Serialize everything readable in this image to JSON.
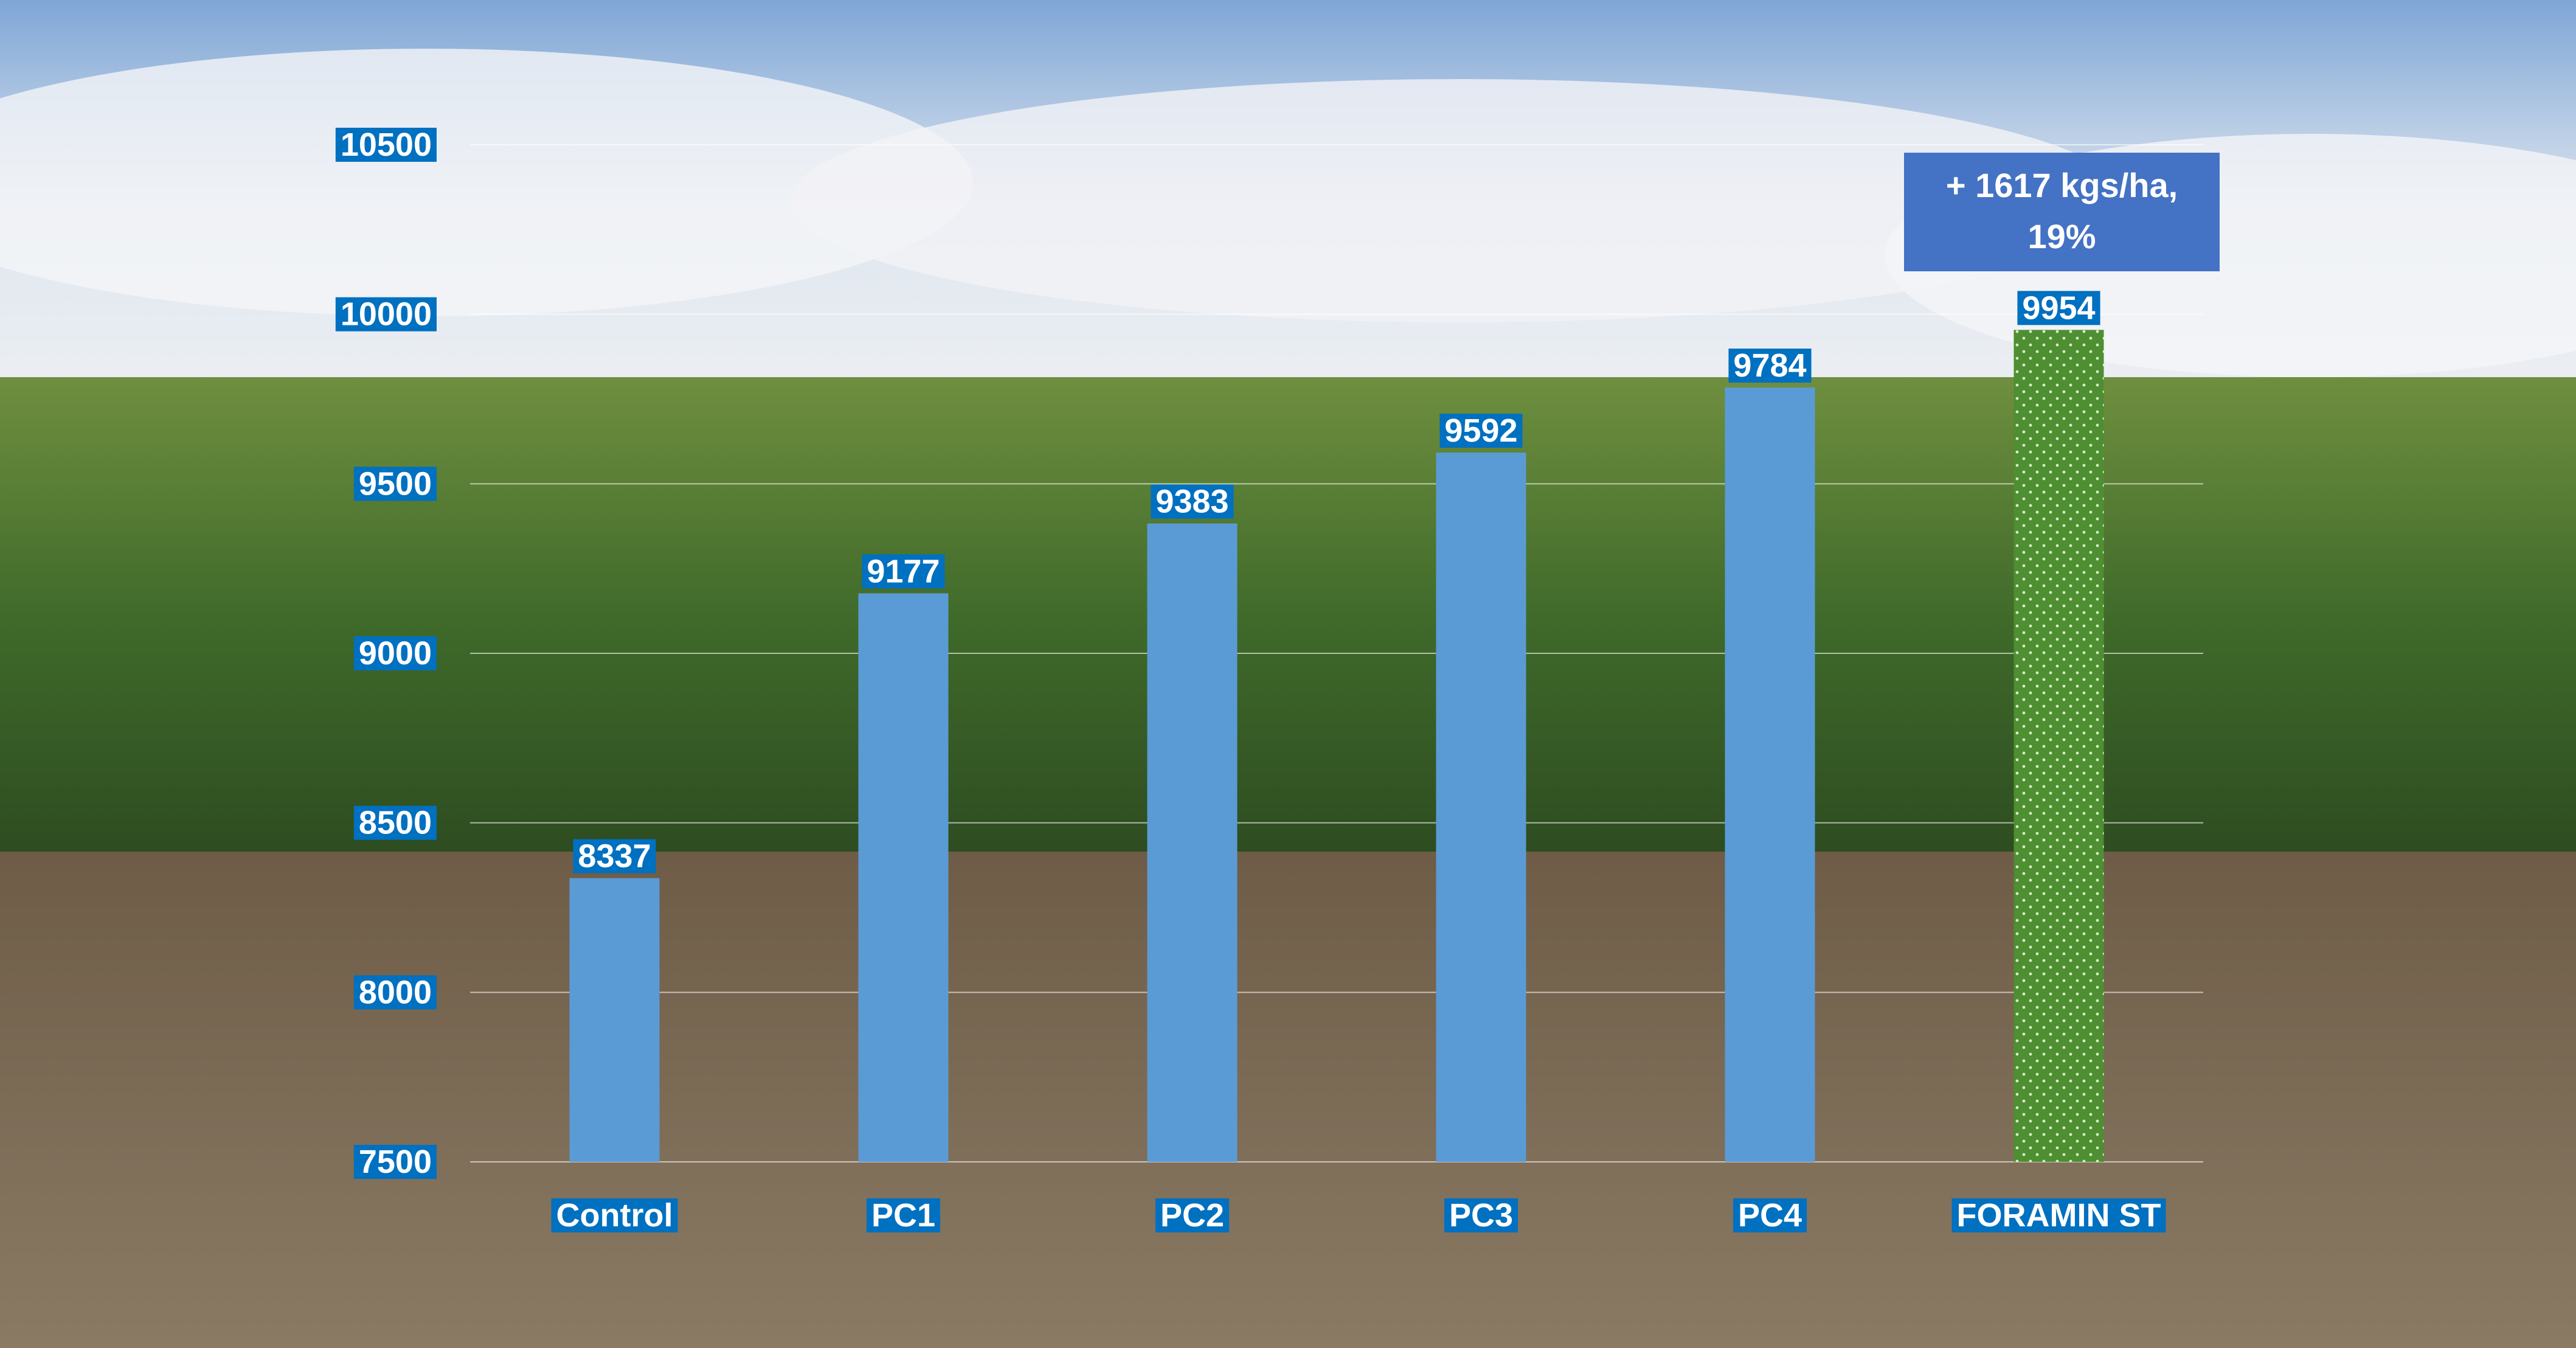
{
  "chart_data": {
    "type": "bar",
    "categories": [
      "Control",
      "PC1",
      "PC2",
      "PC3",
      "PC4",
      "FORAMIN ST"
    ],
    "values": [
      8337,
      9177,
      9383,
      9592,
      9784,
      9954
    ],
    "colors": [
      "#5b9bd5",
      "#5b9bd5",
      "#5b9bd5",
      "#5b9bd5",
      "#5b9bd5",
      "#4e8f31"
    ],
    "ylim": [
      7500,
      10500
    ],
    "yticks": [
      7500,
      8000,
      8500,
      9000,
      9500,
      10000,
      10500
    ],
    "grid": true,
    "annotation": "+ 1617 kgs/ha, 19%"
  }
}
